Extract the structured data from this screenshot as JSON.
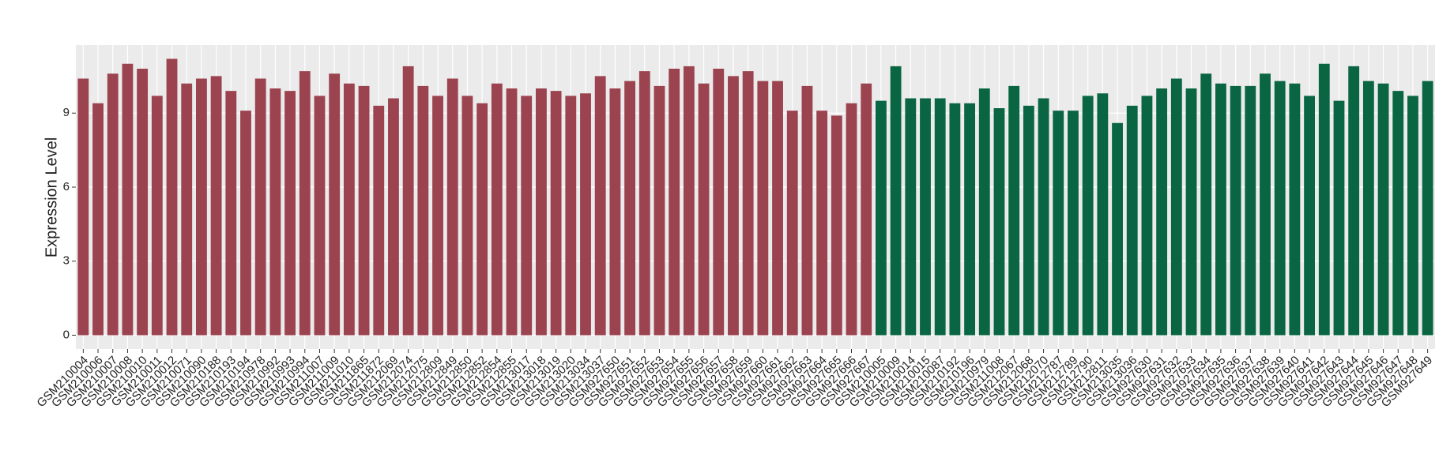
{
  "chart_data": {
    "type": "bar",
    "y_label": "Expression Level",
    "categories": [
      "GSM210004",
      "GSM210006",
      "GSM210007",
      "GSM210008",
      "GSM210010",
      "GSM210011",
      "GSM210012",
      "GSM210071",
      "GSM210090",
      "GSM210188",
      "GSM210193",
      "GSM210194",
      "GSM210978",
      "GSM210992",
      "GSM210993",
      "GSM210994",
      "GSM211007",
      "GSM211009",
      "GSM211010",
      "GSM211865",
      "GSM211872",
      "GSM212069",
      "GSM212074",
      "GSM212075",
      "GSM212809",
      "GSM212849",
      "GSM212850",
      "GSM212852",
      "GSM212854",
      "GSM212855",
      "GSM213017",
      "GSM213018",
      "GSM213019",
      "GSM213020",
      "GSM213034",
      "GSM213037",
      "GSM927650",
      "GSM927651",
      "GSM927652",
      "GSM927653",
      "GSM927654",
      "GSM927655",
      "GSM927656",
      "GSM927657",
      "GSM927658",
      "GSM927659",
      "GSM927660",
      "GSM927661",
      "GSM927662",
      "GSM927663",
      "GSM927664",
      "GSM927665",
      "GSM927666",
      "GSM927667",
      "GSM210005",
      "GSM210009",
      "GSM210014",
      "GSM210015",
      "GSM210087",
      "GSM210192",
      "GSM210196",
      "GSM210979",
      "GSM211008",
      "GSM212067",
      "GSM212068",
      "GSM212070",
      "GSM212787",
      "GSM212789",
      "GSM212790",
      "GSM212811",
      "GSM213035",
      "GSM213036",
      "GSM927630",
      "GSM927631",
      "GSM927632",
      "GSM927633",
      "GSM927634",
      "GSM927635",
      "GSM927636",
      "GSM927637",
      "GSM927638",
      "GSM927639",
      "GSM927640",
      "GSM927641",
      "GSM927642",
      "GSM927643",
      "GSM927644",
      "GSM927645",
      "GSM927646",
      "GSM927647",
      "GSM927648",
      "GSM927649"
    ],
    "values": [
      10.4,
      9.4,
      10.6,
      11.0,
      10.8,
      9.7,
      11.2,
      10.2,
      10.4,
      10.5,
      9.9,
      9.1,
      10.4,
      10.0,
      9.9,
      10.7,
      9.7,
      10.6,
      10.2,
      10.1,
      9.3,
      9.6,
      10.9,
      10.1,
      9.7,
      10.4,
      9.7,
      9.4,
      10.2,
      10.0,
      9.7,
      10.0,
      9.9,
      9.7,
      9.8,
      10.5,
      10.0,
      10.3,
      10.7,
      10.1,
      10.8,
      10.9,
      10.2,
      10.8,
      10.5,
      10.7,
      10.3,
      10.3,
      9.1,
      10.1,
      9.1,
      8.9,
      9.4,
      10.2,
      9.5,
      10.9,
      9.6,
      9.6,
      9.6,
      9.4,
      9.4,
      10.0,
      9.2,
      10.1,
      9.3,
      9.6,
      9.1,
      9.1,
      9.7,
      9.8,
      8.6,
      9.3,
      9.7,
      10.0,
      10.4,
      10.0,
      10.6,
      10.2,
      10.1,
      10.1,
      10.6,
      10.3,
      10.2,
      9.7,
      11.0,
      9.5,
      10.9,
      10.3,
      10.2,
      9.9,
      9.7,
      10.3
    ],
    "colors": [
      "#9c4350",
      "#9c4350",
      "#9c4350",
      "#9c4350",
      "#9c4350",
      "#9c4350",
      "#9c4350",
      "#9c4350",
      "#9c4350",
      "#9c4350",
      "#9c4350",
      "#9c4350",
      "#9c4350",
      "#9c4350",
      "#9c4350",
      "#9c4350",
      "#9c4350",
      "#9c4350",
      "#9c4350",
      "#9c4350",
      "#9c4350",
      "#9c4350",
      "#9c4350",
      "#9c4350",
      "#9c4350",
      "#9c4350",
      "#9c4350",
      "#9c4350",
      "#9c4350",
      "#9c4350",
      "#9c4350",
      "#9c4350",
      "#9c4350",
      "#9c4350",
      "#9c4350",
      "#9c4350",
      "#9c4350",
      "#9c4350",
      "#9c4350",
      "#9c4350",
      "#9c4350",
      "#9c4350",
      "#9c4350",
      "#9c4350",
      "#9c4350",
      "#9c4350",
      "#9c4350",
      "#9c4350",
      "#9c4350",
      "#9c4350",
      "#9c4350",
      "#9c4350",
      "#9c4350",
      "#9c4350",
      "#0a6642",
      "#0a6642",
      "#0a6642",
      "#0a6642",
      "#0a6642",
      "#0a6642",
      "#0a6642",
      "#0a6642",
      "#0a6642",
      "#0a6642",
      "#0a6642",
      "#0a6642",
      "#0a6642",
      "#0a6642",
      "#0a6642",
      "#0a6642",
      "#0a6642",
      "#0a6642",
      "#0a6642",
      "#0a6642",
      "#0a6642",
      "#0a6642",
      "#0a6642",
      "#0a6642",
      "#0a6642",
      "#0a6642",
      "#0a6642",
      "#0a6642",
      "#0a6642",
      "#0a6642",
      "#0a6642",
      "#0a6642",
      "#0a6642",
      "#0a6642",
      "#0a6642",
      "#0a6642",
      "#0a6642",
      "#0a6642"
    ],
    "ylim": [
      -0.56,
      11.76
    ],
    "yticks": [
      0,
      3,
      6,
      9
    ],
    "grid": true
  }
}
